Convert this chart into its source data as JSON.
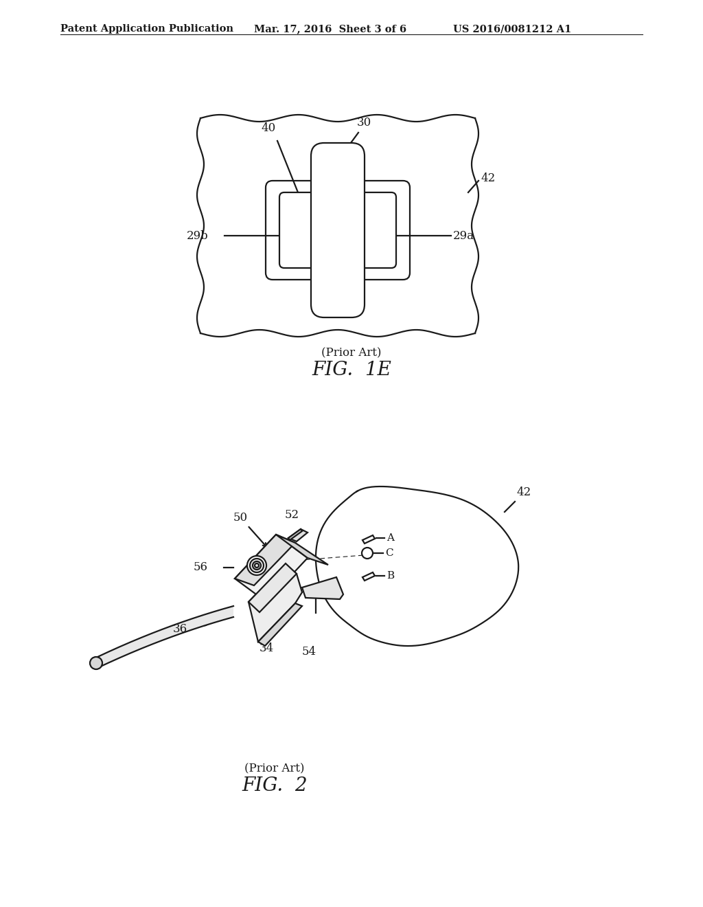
{
  "header_left": "Patent Application Publication",
  "header_mid": "Mar. 17, 2016  Sheet 3 of 6",
  "header_right": "US 2016/0081212 A1",
  "fig1e_label": "FIG.  1E",
  "fig1e_prior": "(Prior Art)",
  "fig2_label": "FIG.  2",
  "fig2_prior": "(Prior Art)",
  "bg_color": "#ffffff",
  "line_color": "#1a1a1a",
  "lw": 1.6
}
